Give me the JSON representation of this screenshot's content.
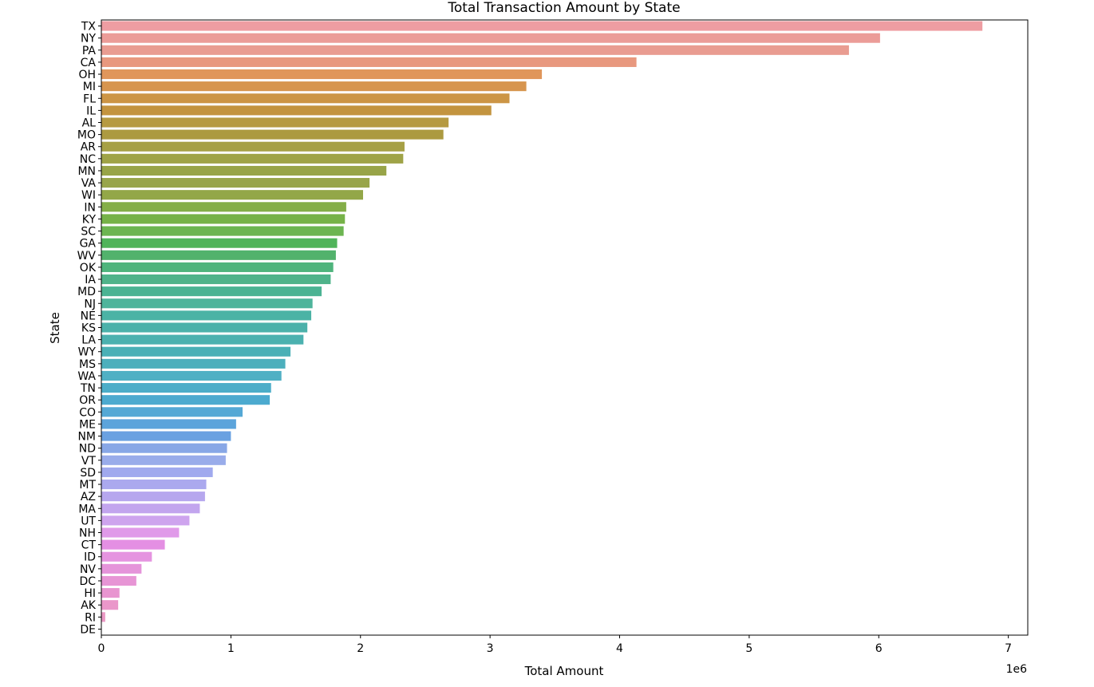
{
  "chart_data": {
    "type": "bar",
    "orientation": "horizontal",
    "title": "Total Transaction Amount by State",
    "xlabel": "Total Amount",
    "ylabel": "State",
    "x_offset_label": "1e6",
    "xlim": [
      0,
      7.15
    ],
    "xticks": [
      0,
      1,
      2,
      3,
      4,
      5,
      6,
      7
    ],
    "grid": false,
    "legend": "none",
    "categories": [
      "TX",
      "NY",
      "PA",
      "CA",
      "OH",
      "MI",
      "FL",
      "IL",
      "AL",
      "MO",
      "AR",
      "NC",
      "MN",
      "VA",
      "WI",
      "IN",
      "KY",
      "SC",
      "GA",
      "WV",
      "OK",
      "IA",
      "MD",
      "NJ",
      "NE",
      "KS",
      "LA",
      "WY",
      "MS",
      "WA",
      "TN",
      "OR",
      "CO",
      "ME",
      "NM",
      "ND",
      "VT",
      "SD",
      "MT",
      "AZ",
      "MA",
      "UT",
      "NH",
      "CT",
      "ID",
      "NV",
      "DC",
      "HI",
      "AK",
      "RI",
      "DE"
    ],
    "values": [
      6.8,
      6.01,
      5.77,
      4.13,
      3.4,
      3.28,
      3.15,
      3.01,
      2.68,
      2.64,
      2.34,
      2.33,
      2.2,
      2.07,
      2.02,
      1.89,
      1.88,
      1.87,
      1.82,
      1.81,
      1.79,
      1.77,
      1.7,
      1.63,
      1.62,
      1.59,
      1.56,
      1.46,
      1.42,
      1.39,
      1.31,
      1.3,
      1.09,
      1.04,
      1.0,
      0.97,
      0.96,
      0.86,
      0.81,
      0.8,
      0.76,
      0.68,
      0.6,
      0.49,
      0.39,
      0.31,
      0.27,
      0.14,
      0.13,
      0.03,
      0.0
    ],
    "colors": [
      "#EE9DA2",
      "#EB9C98",
      "#E99C91",
      "#E8987E",
      "#E0965B",
      "#D7954E",
      "#CC9545",
      "#C3943F",
      "#B69A41",
      "#AC9A40",
      "#A6A045",
      "#9FA347",
      "#98A448",
      "#98A54A",
      "#93A748",
      "#84AE48",
      "#76B248",
      "#6CB551",
      "#50B45A",
      "#52B26C",
      "#4EB47C",
      "#4FB38A",
      "#4BB393",
      "#4EB49B",
      "#4BB3A5",
      "#4BB1AA",
      "#4BB1AF",
      "#4AB0B6",
      "#4CAFBC",
      "#50B0C4",
      "#4CADC8",
      "#4CAACF",
      "#54A8D5",
      "#5CA4DB",
      "#6AA1E1",
      "#88A7E6",
      "#99ACEA",
      "#A0A9EE",
      "#ABA9EE",
      "#B6A7EE",
      "#C2A5EE",
      "#CEA4EE",
      "#E09AE9",
      "#E48FE3",
      "#E594E0",
      "#E594DA",
      "#E795D5",
      "#E895D0",
      "#EA97CA",
      "#EA98C4",
      "#EA98C0"
    ]
  }
}
